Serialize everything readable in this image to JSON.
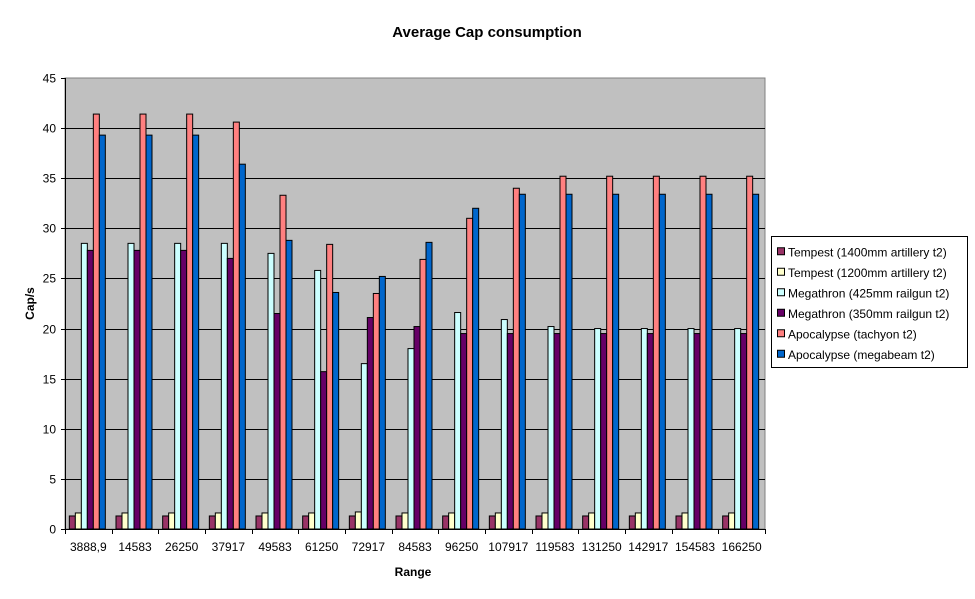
{
  "chart_data": {
    "type": "bar",
    "title": "Average Cap consumption",
    "xlabel": "Range",
    "ylabel": "Cap/s",
    "ylim": [
      0,
      45
    ],
    "yticks": [
      0,
      5,
      10,
      15,
      20,
      25,
      30,
      35,
      40,
      45
    ],
    "grid": true,
    "legend_position": "right",
    "categories": [
      "3888,9",
      "14583",
      "26250",
      "37917",
      "49583",
      "61250",
      "72917",
      "84583",
      "96250",
      "107917",
      "119583",
      "131250",
      "142917",
      "154583",
      "166250"
    ],
    "series": [
      {
        "name": "Tempest (1400mm artillery t2)",
        "color": "#993366",
        "values": [
          1.3,
          1.3,
          1.3,
          1.3,
          1.3,
          1.3,
          1.3,
          1.3,
          1.3,
          1.3,
          1.3,
          1.3,
          1.3,
          1.3,
          1.3
        ]
      },
      {
        "name": "Tempest (1200mm artillery t2)",
        "color": "#FFFFCC",
        "values": [
          1.6,
          1.6,
          1.6,
          1.6,
          1.6,
          1.6,
          1.7,
          1.6,
          1.6,
          1.6,
          1.6,
          1.6,
          1.6,
          1.6,
          1.6
        ]
      },
      {
        "name": "Megathron (425mm railgun t2)",
        "color": "#CCFFFF",
        "values": [
          28.5,
          28.5,
          28.5,
          28.5,
          27.5,
          25.8,
          16.5,
          18.0,
          21.6,
          20.9,
          20.2,
          20.0,
          20.0,
          20.0,
          20.0
        ]
      },
      {
        "name": "Megathron (350mm railgun t2)",
        "color": "#660066",
        "values": [
          27.8,
          27.8,
          27.8,
          27.0,
          21.5,
          15.7,
          21.1,
          20.2,
          19.5,
          19.5,
          19.5,
          19.5,
          19.5,
          19.5,
          19.5
        ]
      },
      {
        "name": "Apocalypse (tachyon t2)",
        "color": "#FF8080",
        "values": [
          41.4,
          41.4,
          41.4,
          40.6,
          33.3,
          28.4,
          23.5,
          26.9,
          31.0,
          34.0,
          35.2,
          35.2,
          35.2,
          35.2,
          35.2
        ]
      },
      {
        "name": "Apocalypse (megabeam t2)",
        "color": "#0066CC",
        "values": [
          39.3,
          39.3,
          39.3,
          36.4,
          28.8,
          23.6,
          25.2,
          28.6,
          32.0,
          33.4,
          33.4,
          33.4,
          33.4,
          33.4,
          33.4
        ]
      }
    ]
  },
  "colors": {
    "plot_background": "#C0C0C0",
    "gridline": "#000000"
  }
}
